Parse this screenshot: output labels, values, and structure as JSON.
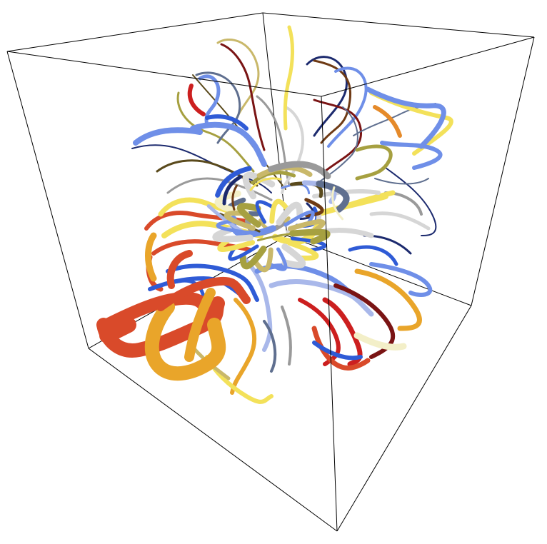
{
  "scene": {
    "view": "3d-bounding-box-with-tubes",
    "frame_color": "#000000",
    "background": "#ffffff",
    "palette": {
      "navy": "#1c2a6e",
      "royal_blue": "#2f5bd6",
      "cornflower": "#6f8fe8",
      "light_blue": "#a9b8ea",
      "slate": "#5f6f8f",
      "gray": "#9a9a9a",
      "light_gray": "#d6d6d6",
      "cream": "#f3efc8",
      "yellow": "#f3e15a",
      "olive": "#a6a040",
      "khaki": "#c9b86a",
      "dark_olive": "#5a4a1c",
      "brown": "#6e3a14",
      "orange": "#e58a2a",
      "amber": "#e9a52a",
      "red_orange": "#d94a2a",
      "red": "#cc1f1f",
      "dark_red": "#7a1414"
    }
  }
}
